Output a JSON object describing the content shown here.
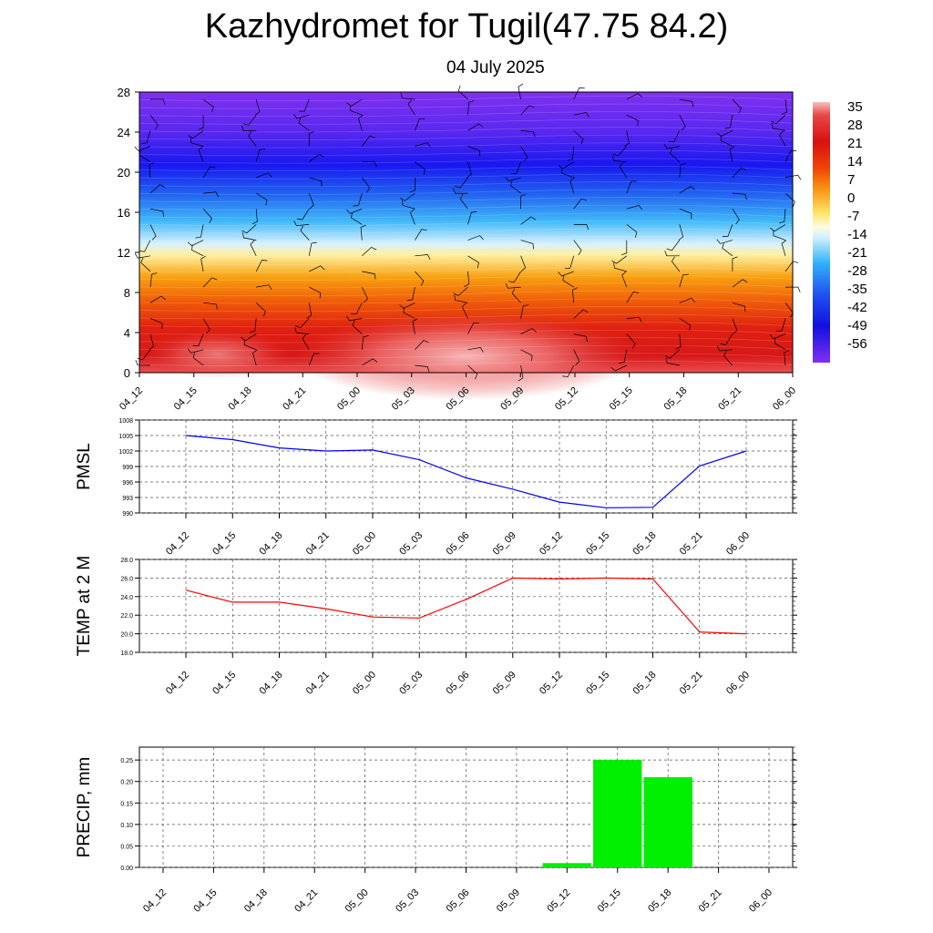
{
  "title": "Kazhydromet for Tugil(47.75 84.2)",
  "subtitle": "04 July 2025",
  "chart_data": [
    {
      "type": "heatmap",
      "name": "temperature-cross-section",
      "x_ticks": [
        "04_12",
        "04_15",
        "04_18",
        "04_21",
        "05_00",
        "05_03",
        "05_06",
        "05_09",
        "05_12",
        "05_15",
        "05_18",
        "05_21",
        "06_00"
      ],
      "y_ticks": [
        0,
        4,
        8,
        12,
        16,
        20,
        24,
        28
      ],
      "ylim": [
        0,
        28
      ],
      "colorbar_labels": [
        "35",
        "28",
        "21",
        "14",
        "7",
        "0",
        "-7",
        "-14",
        "-21",
        "-28",
        "-35",
        "-42",
        "-49",
        "-56"
      ],
      "colorbar_range": [
        -60,
        36
      ],
      "wind_barbs": true
    },
    {
      "type": "line",
      "ylabel": "PMSL",
      "categories": [
        "04_12",
        "04_15",
        "04_18",
        "04_21",
        "05_00",
        "05_03",
        "05_06",
        "05_09",
        "05_12",
        "05_15",
        "05_18",
        "05_21",
        "06_00"
      ],
      "values": [
        1005,
        1004.2,
        1002.6,
        1002,
        1002.2,
        1000.3,
        996.8,
        994.6,
        992.1,
        991,
        991.1,
        999.1,
        1002
      ],
      "ylim": [
        990,
        1008
      ],
      "y_ticks": [
        "1008",
        "1005",
        "1002",
        "999",
        "996",
        "993",
        "990"
      ],
      "color": "#0000ff",
      "grid": true
    },
    {
      "type": "line",
      "ylabel": "TEMP at 2 M",
      "categories": [
        "04_12",
        "04_15",
        "04_18",
        "04_21",
        "05_00",
        "05_03",
        "05_06",
        "05_09",
        "05_12",
        "05_15",
        "05_18",
        "05_21",
        "06_00"
      ],
      "values": [
        24.7,
        23.4,
        23.4,
        22.7,
        21.8,
        21.7,
        23.7,
        26.0,
        25.9,
        26.0,
        25.9,
        20.2,
        20.0
      ],
      "ylim": [
        18,
        28
      ],
      "y_ticks": [
        "28.0",
        "26.0",
        "24.0",
        "22.0",
        "20.0",
        "18.0"
      ],
      "color": "#ff0000",
      "grid": true
    },
    {
      "type": "bar",
      "ylabel": "PRECIP, mm",
      "categories": [
        "04_12",
        "04_15",
        "04_18",
        "04_21",
        "05_00",
        "05_03",
        "05_06",
        "05_09",
        "05_12",
        "05_15",
        "05_18",
        "05_21",
        "06_00"
      ],
      "values": [
        0,
        0,
        0,
        0,
        0,
        0,
        0,
        0,
        0.01,
        0.25,
        0.21,
        0,
        0
      ],
      "ylim": [
        0,
        0.28
      ],
      "y_ticks": [
        "0.25",
        "0.20",
        "0.15",
        "0.10",
        "0.05",
        "0.00"
      ],
      "color": "#00ee00",
      "grid": true
    }
  ]
}
